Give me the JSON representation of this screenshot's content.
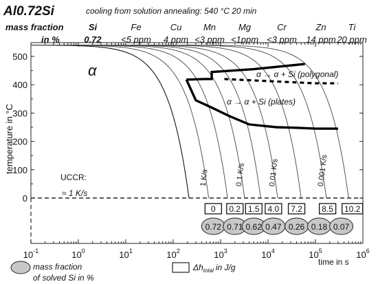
{
  "header": {
    "alloy": "Al0.72Si",
    "condition": "cooling from solution annealing: 540 °C 20 min",
    "row1_label": "mass fraction",
    "row2_label": "in %",
    "elements": [
      {
        "name": "Si",
        "value": "0.72"
      },
      {
        "name": "Fe",
        "value": "<5 ppm"
      },
      {
        "name": "Cu",
        "value": "4 ppm"
      },
      {
        "name": "Mn",
        "value": "<3 ppm"
      },
      {
        "name": "Mg",
        "value": "<1ppm"
      },
      {
        "name": "Cr",
        "value": "<3 ppm"
      },
      {
        "name": "Zn",
        "value": "14 ppm"
      },
      {
        "name": "Ti",
        "value": "20 ppm"
      }
    ]
  },
  "chart_data": {
    "type": "line",
    "xscale": "log",
    "xlim": [
      0.1,
      1000000
    ],
    "ylim": [
      -120,
      560
    ],
    "ylabel": "temperature in °C",
    "xlabel": "time in s",
    "xticks": [
      {
        "value": 0.1,
        "base": "10",
        "exp": "-1"
      },
      {
        "value": 1,
        "base": "10",
        "exp": "0"
      },
      {
        "value": 10,
        "base": "10",
        "exp": "1"
      },
      {
        "value": 100,
        "base": "10",
        "exp": "2"
      },
      {
        "value": 1000,
        "base": "10",
        "exp": "3"
      },
      {
        "value": 10000,
        "base": "10",
        "exp": "4"
      },
      {
        "value": 100000,
        "base": "10",
        "exp": "5"
      },
      {
        "value": 1000000,
        "base": "10",
        "exp": "6"
      }
    ],
    "yticks": [
      0,
      100,
      200,
      300,
      400,
      500
    ],
    "phase_label": "α",
    "cooling_curves": [
      {
        "t_end": 215
      },
      {
        "t_end": 560,
        "label": "1 K/s"
      },
      {
        "t_end": 1400
      },
      {
        "t_end": 3200,
        "label": "0.1 K/s"
      },
      {
        "t_end": 7000
      },
      {
        "t_end": 16000,
        "label": "0.01 K/s"
      },
      {
        "t_end": 50000
      },
      {
        "t_end": 170000,
        "label": "0.001 K/s"
      },
      {
        "t_end": 500000
      }
    ],
    "polygonal_curve": {
      "label": "α → α + Si (polygonal)",
      "points": [
        [
          190,
          418
        ],
        [
          450,
          420
        ],
        [
          650,
          420
        ],
        [
          650,
          445
        ],
        [
          5000,
          455
        ],
        [
          60000,
          473
        ]
      ]
    },
    "polygonal_dotted": {
      "points": [
        [
          1200,
          420
        ],
        [
          100000,
          405
        ],
        [
          300000,
          405
        ]
      ]
    },
    "plates_curve": {
      "label": "α → α + Si (plates)",
      "points": [
        [
          190,
          418
        ],
        [
          300,
          345
        ],
        [
          600,
          322
        ],
        [
          1500,
          290
        ],
        [
          4000,
          260
        ],
        [
          15000,
          250
        ],
        [
          40000,
          248
        ],
        [
          100000,
          245
        ],
        [
          300000,
          245
        ]
      ]
    },
    "uccr": {
      "label": "UCCR:",
      "value": "≈ 1 K/s"
    },
    "enthalpy": {
      "label": "Δh",
      "subscript": "total",
      "unit": "in J/g",
      "values": [
        {
          "t": 700,
          "value": "0"
        },
        {
          "t": 2000,
          "value": "0.2"
        },
        {
          "t": 5000,
          "value": "1.5"
        },
        {
          "t": 13000,
          "value": "4.0"
        },
        {
          "t": 40000,
          "value": "7.2"
        },
        {
          "t": 180000,
          "value": "8.5"
        },
        {
          "t": 600000,
          "value": "10.2"
        }
      ]
    },
    "solved_si": {
      "label_line1": "mass fraction",
      "label_line2": "of solved Si in %",
      "values": [
        {
          "t": 700,
          "value": "0.72"
        },
        {
          "t": 2000,
          "value": "0.71"
        },
        {
          "t": 5000,
          "value": "0.62"
        },
        {
          "t": 13000,
          "value": "0.47"
        },
        {
          "t": 40000,
          "value": "0.26"
        },
        {
          "t": 120000,
          "value": "0.18"
        },
        {
          "t": 350000,
          "value": "0.07"
        }
      ]
    }
  }
}
